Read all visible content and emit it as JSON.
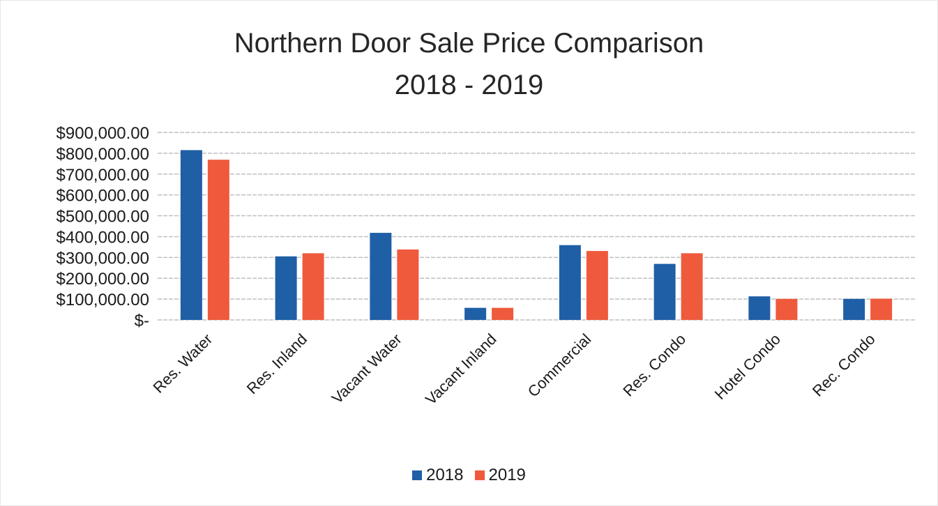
{
  "chart_data": {
    "type": "bar",
    "title": "Northern Door Sale Price Comparison",
    "subtitle": "2018 - 2019",
    "xlabel": "",
    "ylabel": "",
    "categories": [
      "Res. Water",
      "Res. Inland",
      "Vacant Water",
      "Vacant Inland",
      "Commercial",
      "Res. Condo",
      "Hotel Condo",
      "Rec. Condo"
    ],
    "series": [
      {
        "name": "2018",
        "color": "#1f5fa6",
        "values": [
          815000,
          305000,
          418000,
          58000,
          359000,
          269000,
          113000,
          101000
        ]
      },
      {
        "name": "2019",
        "color": "#ef5a3c",
        "values": [
          769000,
          320000,
          338000,
          58000,
          331000,
          320000,
          101000,
          102000
        ]
      }
    ],
    "ylim": [
      0,
      900000
    ],
    "yticks": [
      0,
      100000,
      200000,
      300000,
      400000,
      500000,
      600000,
      700000,
      800000,
      900000
    ],
    "ytick_labels": [
      "$-",
      "$100,000.00",
      "$200,000.00",
      "$300,000.00",
      "$400,000.00",
      "$500,000.00",
      "$600,000.00",
      "$700,000.00",
      "$800,000.00",
      "$900,000.00"
    ],
    "grid": true,
    "legend_position": "bottom-center"
  }
}
